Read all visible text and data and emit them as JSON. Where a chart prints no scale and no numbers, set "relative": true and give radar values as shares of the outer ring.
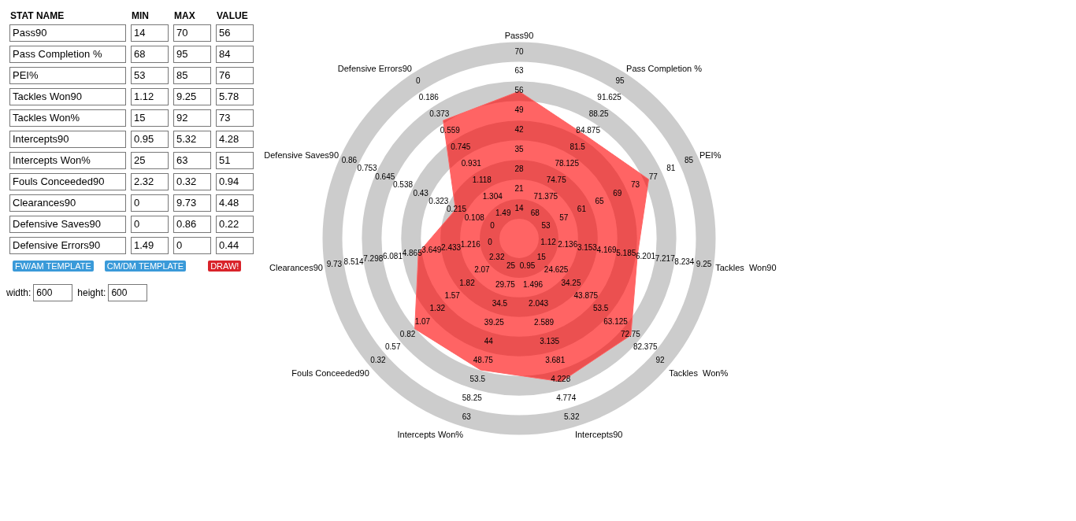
{
  "chart_data": [
    {
      "type": "other",
      "ylabel": "STAT NAME",
      "categories": [
        "Pass90",
        "Pass Completion %",
        "PEI%",
        "Tackles  Won90",
        "Tackles  Won%",
        "Intercepts90",
        "Intercepts Won%",
        "Fouls Conceeded90",
        "Clearances90",
        "Defensive Saves90",
        "Defensive Errors90"
      ],
      "series": [
        {
          "name": "MIN",
          "values": [
            14,
            68,
            53,
            1.12,
            15,
            0.95,
            25,
            2.32,
            0,
            0,
            1.49
          ]
        },
        {
          "name": "MAX",
          "values": [
            70,
            95,
            85,
            9.25,
            92,
            5.32,
            63,
            0.32,
            9.73,
            0.86,
            0
          ]
        },
        {
          "name": "VALUE",
          "values": [
            56,
            84,
            76,
            5.78,
            73,
            4.28,
            51,
            0.94,
            4.48,
            0.22,
            0.44
          ]
        }
      ],
      "data_labels": true,
      "annotations": [
        "FW/AM TEMPLATE",
        "CM/DM TEMPLATE",
        "DRAW!",
        "width:",
        "600",
        "height:",
        "600"
      ]
    },
    {
      "type": "radar",
      "relative": true,
      "grid": true,
      "categories": [
        "Pass90",
        "Pass Completion %",
        "PEI%",
        "Tackles  Won90",
        "Tackles  Won%",
        "Intercepts90",
        "Intercepts Won%",
        "Fouls Conceeded90",
        "Clearances90",
        "Defensive Saves90",
        "Defensive Errors90"
      ],
      "series": [
        {
          "color": "#ff6464",
          "values": [
            0.789,
            0.657,
            0.763,
            0.64,
            0.792,
            0.8,
            0.734,
            0.739,
            0.545,
            0.374,
            0.752
          ]
        }
      ],
      "annotations": [
        "14",
        "21",
        "28",
        "35",
        "42",
        "49",
        "56",
        "63",
        "70",
        "68",
        "71.375",
        "74.75",
        "78.125",
        "81.5",
        "84.875",
        "88.25",
        "91.625",
        "95",
        "53",
        "57",
        "61",
        "65",
        "69",
        "73",
        "77",
        "81",
        "85",
        "1.12",
        "2.136",
        "3.153",
        "4.169",
        "5.185",
        "6.201",
        "7.217",
        "8.234",
        "9.25",
        "15",
        "24.625",
        "34.25",
        "43.875",
        "53.5",
        "63.125",
        "72.75",
        "82.375",
        "92",
        "0.95",
        "1.496",
        "2.043",
        "2.589",
        "3.135",
        "3.681",
        "4.228",
        "4.774",
        "5.32",
        "25",
        "29.75",
        "34.5",
        "39.25",
        "44",
        "48.75",
        "53.5",
        "58.25",
        "63",
        "2.32",
        "2.07",
        "1.82",
        "1.57",
        "1.32",
        "1.07",
        "0.82",
        "0.57",
        "0.32",
        "0",
        "1.216",
        "2.433",
        "3.649",
        "4.865",
        "6.081",
        "7.298",
        "8.514",
        "9.73",
        "0",
        "0.108",
        "0.215",
        "0.323",
        "0.43",
        "0.538",
        "0.645",
        "0.753",
        "0.86",
        "1.49",
        "1.304",
        "1.118",
        "0.931",
        "0.745",
        "0.559",
        "0.373",
        "0.186",
        "0"
      ]
    }
  ]
}
